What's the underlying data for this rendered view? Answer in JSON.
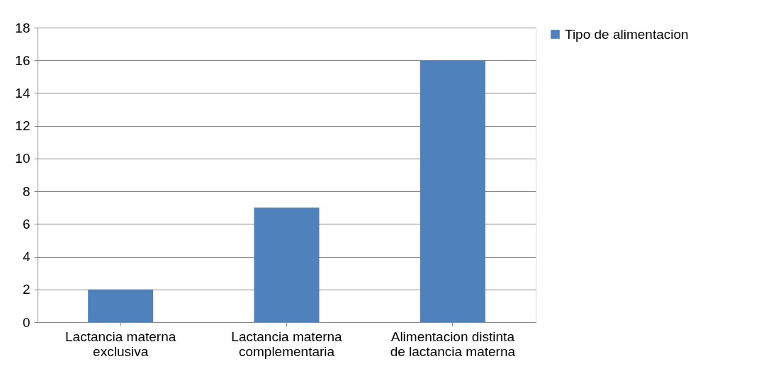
{
  "chart_data": {
    "type": "bar",
    "categories": [
      "Lactancia materna exclusiva",
      "Lactancia materna complementaria",
      "Alimentacion distinta de lactancia materna"
    ],
    "series": [
      {
        "name": "Tipo de alimentacion",
        "color": "#4f81bd",
        "values": [
          2,
          7,
          16
        ]
      }
    ],
    "ylim": [
      0,
      18
    ],
    "yticks": [
      0,
      2,
      4,
      6,
      8,
      10,
      12,
      14,
      16,
      18
    ],
    "grid": "y",
    "legend": "right"
  }
}
